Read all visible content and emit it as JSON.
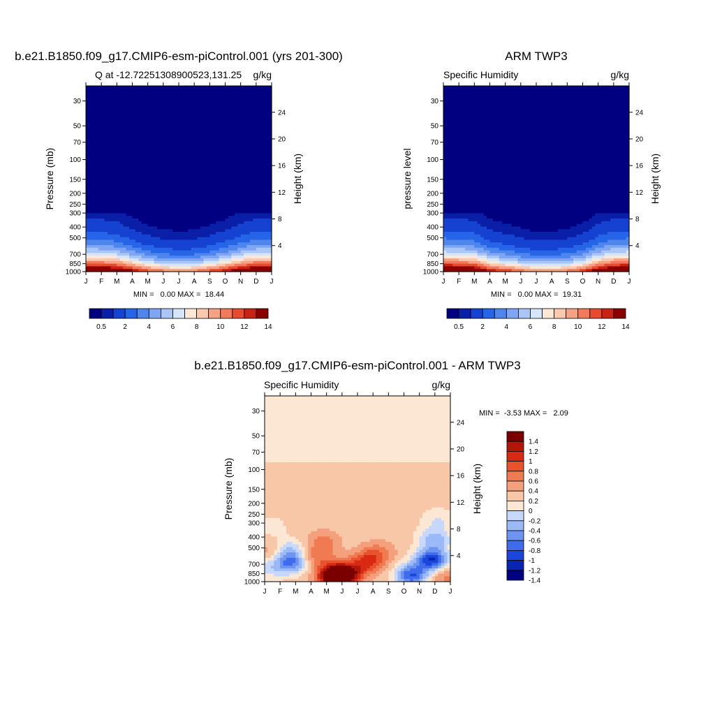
{
  "figure": {
    "panel1_title": "b.e21.B1850.f09_g17.CMIP6-esm-piControl.001 (yrs 201-300)",
    "panel2_title": "ARM TWP3",
    "diff_title": "b.e21.B1850.f09_g17.CMIP6-esm-piControl.001 - ARM TWP3"
  },
  "colors": {
    "q_palette": [
      "#000080",
      "#0A1FA8",
      "#1542D0",
      "#2664E8",
      "#4F86EE",
      "#7EA6F2",
      "#ABC6F6",
      "#D6E6FA",
      "#FDE8D8",
      "#FBC8B0",
      "#F6A284",
      "#F27A5A",
      "#E84A2E",
      "#C82214",
      "#8B0000"
    ],
    "diff_palette": [
      "#000080",
      "#0A23B0",
      "#1A46DA",
      "#3E6CEC",
      "#6E94F2",
      "#9CB9F7",
      "#C6D8FB",
      "#FCE6D4",
      "#F8C7A8",
      "#F4A07C",
      "#F07A52",
      "#E8532D",
      "#D82A12",
      "#B2150A",
      "#7A0000"
    ]
  },
  "chart_data": [
    {
      "type": "heatmap",
      "id": "model",
      "title": "b.e21.B1850.f09_g17.CMIP6-esm-piControl.001 (yrs 201-300)",
      "left_label": "Q at -12.72251308900523,131.25",
      "right_label": "g/kg",
      "xlabel": "",
      "ylabel": "Pressure (mb)",
      "y2label": "Height (km)",
      "months": [
        "J",
        "F",
        "M",
        "A",
        "M",
        "J",
        "J",
        "A",
        "S",
        "O",
        "N",
        "D",
        "J"
      ],
      "pressure_ticks": [
        30,
        50,
        70,
        100,
        150,
        200,
        250,
        300,
        400,
        500,
        700,
        850,
        1000
      ],
      "height_ticks": [
        4,
        8,
        12,
        16,
        20,
        24
      ],
      "min": 0.0,
      "max": 18.44,
      "stats_text": "MIN =   0.00 MAX =  18.44",
      "levels": [
        0.5,
        1,
        2,
        3,
        4,
        5,
        6,
        7,
        8,
        9,
        10,
        11,
        12,
        13,
        14
      ],
      "colorbar_labels": [
        "0.5",
        "2",
        "4",
        "6",
        "8",
        "10",
        "12",
        "14"
      ],
      "profile_month_scale": [
        0.95,
        0.92,
        0.85,
        0.65,
        0.45,
        0.35,
        0.3,
        0.33,
        0.45,
        0.6,
        0.8,
        0.93,
        0.95
      ]
    },
    {
      "type": "heatmap",
      "id": "obs",
      "title": "ARM TWP3",
      "left_label": "Specific Humidity",
      "right_label": "g/kg",
      "xlabel": "",
      "ylabel": "pressure level",
      "y2label": "Height (km)",
      "months": [
        "J",
        "F",
        "M",
        "A",
        "M",
        "J",
        "J",
        "A",
        "S",
        "O",
        "N",
        "D",
        "J"
      ],
      "pressure_ticks": [
        30,
        50,
        70,
        100,
        150,
        200,
        250,
        300,
        400,
        500,
        700,
        850,
        1000
      ],
      "height_ticks": [
        4,
        8,
        12,
        16,
        20,
        24
      ],
      "min": 0.0,
      "max": 19.31,
      "stats_text": "MIN =   0.00 MAX =  19.31",
      "levels": [
        0.5,
        1,
        2,
        3,
        4,
        5,
        6,
        7,
        8,
        9,
        10,
        11,
        12,
        13,
        14
      ],
      "colorbar_labels": [
        "0.5",
        "2",
        "4",
        "6",
        "8",
        "10",
        "12",
        "14"
      ],
      "profile_month_scale": [
        0.97,
        0.95,
        0.88,
        0.62,
        0.5,
        0.38,
        0.28,
        0.3,
        0.35,
        0.5,
        0.78,
        0.95,
        0.97
      ]
    },
    {
      "type": "heatmap",
      "id": "diff",
      "title": "b.e21.B1850.f09_g17.CMIP6-esm-piControl.001 - ARM TWP3",
      "left_label": "Specific Humidity",
      "right_label": "g/kg",
      "ylabel": "Pressure (mb)",
      "y2label": "Height (km)",
      "months": [
        "J",
        "F",
        "M",
        "A",
        "M",
        "J",
        "J",
        "A",
        "S",
        "O",
        "N",
        "D",
        "J"
      ],
      "pressure_ticks": [
        30,
        50,
        70,
        100,
        150,
        200,
        250,
        300,
        400,
        500,
        700,
        850,
        1000
      ],
      "height_ticks": [
        4,
        8,
        12,
        16,
        20,
        24
      ],
      "min": -3.53,
      "max": 2.09,
      "stats_text": "MIN =  -3.53 MAX =   2.09",
      "levels": [
        -1.4,
        -1.2,
        -1,
        -0.8,
        -0.6,
        -0.4,
        -0.2,
        0,
        0.2,
        0.4,
        0.6,
        0.8,
        1,
        1.2,
        1.4
      ],
      "colorbar_labels": [
        "1.4",
        "1.2",
        "1",
        "0.8",
        "0.6",
        "0.4",
        "0.2",
        "0",
        "-0.2",
        "-0.4",
        "-0.6",
        "-0.8",
        "-1",
        "-1.2",
        "-1.4"
      ],
      "features": [
        {
          "month": 1.7,
          "p": 680,
          "amp": -0.9
        },
        {
          "month": 1.5,
          "p": 520,
          "amp": -0.5
        },
        {
          "month": 3.4,
          "p": 600,
          "amp": 0.45
        },
        {
          "month": 3.8,
          "p": 440,
          "amp": 0.35
        },
        {
          "month": 5.0,
          "p": 880,
          "amp": 1.7
        },
        {
          "month": 4.3,
          "p": 900,
          "amp": 0.9
        },
        {
          "month": 6.5,
          "p": 690,
          "amp": 0.7
        },
        {
          "month": 7.3,
          "p": 560,
          "amp": 0.45
        },
        {
          "month": 9.5,
          "p": 880,
          "amp": -1.1
        },
        {
          "month": 10.8,
          "p": 640,
          "amp": -1.3
        },
        {
          "month": 11.0,
          "p": 420,
          "amp": -0.6
        },
        {
          "month": 11.2,
          "p": 280,
          "amp": -0.3
        },
        {
          "month": 0.2,
          "p": 760,
          "amp": -0.35
        },
        {
          "month": 0.5,
          "p": 540,
          "amp": 0.3
        },
        {
          "month": 0.4,
          "p": 320,
          "amp": -0.2
        },
        {
          "month": 11.6,
          "p": 900,
          "amp": 0.4
        }
      ],
      "tropopause_p": 85,
      "upper_value": -0.1,
      "mid_value": 0.1
    }
  ]
}
